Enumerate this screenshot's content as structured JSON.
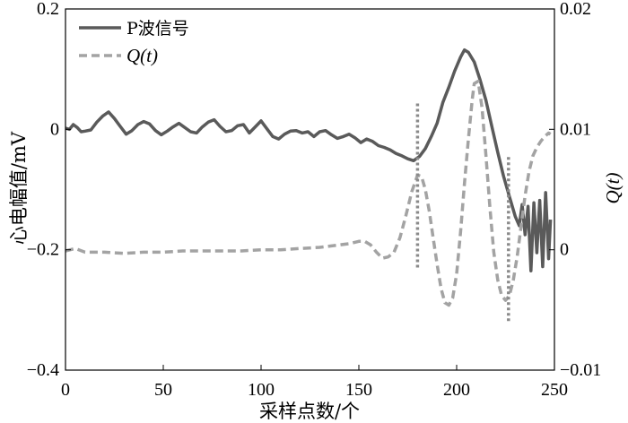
{
  "chart_data": {
    "type": "line",
    "grid": false,
    "legend_position": "top-left",
    "x_axis": {
      "label": "采样点数/个",
      "range": [
        0,
        250
      ],
      "ticks": [
        0,
        50,
        100,
        150,
        200,
        250
      ],
      "tick_labels": [
        "0",
        "50",
        "100",
        "150",
        "200",
        "250"
      ]
    },
    "y_axis_left": {
      "label": "心电幅值/mV",
      "range": [
        -0.4,
        0.2
      ],
      "ticks": [
        0.2,
        0,
        -0.2,
        -0.4
      ],
      "tick_labels": [
        "0.2",
        "0",
        "−0.2",
        "−0.4"
      ]
    },
    "y_axis_right": {
      "label": "Q(t)",
      "range": [
        -0.01,
        0.02
      ],
      "ticks": [
        0.02,
        0.01,
        0,
        -0.01
      ],
      "tick_labels": [
        "0.02",
        "0.01",
        "0",
        "−0.01"
      ]
    },
    "series": [
      {
        "name": "P波信号",
        "axis": "left",
        "color": "#5a5a5a",
        "x": [
          0,
          2,
          4,
          6,
          8,
          10,
          13,
          16,
          19,
          22,
          25,
          28,
          31,
          34,
          37,
          40,
          43,
          46,
          49,
          52,
          55,
          58,
          61,
          64,
          67,
          70,
          73,
          76,
          79,
          82,
          85,
          88,
          91,
          94,
          97,
          100,
          103,
          106,
          109,
          112,
          115,
          118,
          121,
          124,
          127,
          130,
          133,
          136,
          139,
          142,
          145,
          148,
          151,
          154,
          157,
          160,
          163,
          166,
          169,
          172,
          175,
          178,
          181,
          184,
          187,
          190,
          193,
          196,
          199,
          202,
          204,
          206,
          209,
          212,
          215,
          218,
          221,
          224,
          227,
          230,
          232,
          233.5,
          235,
          236.5,
          238,
          239.5,
          241,
          242.5,
          244,
          245.5,
          247,
          248
        ],
        "y": [
          0.002,
          0.0,
          0.008,
          0.003,
          -0.004,
          -0.003,
          -0.001,
          0.012,
          0.022,
          0.029,
          0.018,
          0.005,
          -0.008,
          -0.002,
          0.008,
          0.013,
          0.009,
          -0.002,
          -0.009,
          -0.003,
          0.004,
          0.01,
          0.003,
          -0.004,
          -0.006,
          0.004,
          0.012,
          0.016,
          0.005,
          -0.004,
          -0.002,
          0.006,
          0.008,
          -0.006,
          0.004,
          0.014,
          0.001,
          -0.012,
          -0.016,
          -0.008,
          -0.003,
          -0.002,
          -0.006,
          -0.004,
          -0.012,
          -0.004,
          -0.002,
          -0.009,
          -0.015,
          -0.012,
          -0.008,
          -0.014,
          -0.022,
          -0.016,
          -0.02,
          -0.027,
          -0.03,
          -0.034,
          -0.04,
          -0.044,
          -0.049,
          -0.052,
          -0.045,
          -0.032,
          -0.012,
          0.01,
          0.045,
          0.07,
          0.097,
          0.12,
          0.132,
          0.128,
          0.112,
          0.082,
          0.048,
          0.005,
          -0.038,
          -0.078,
          -0.112,
          -0.145,
          -0.16,
          -0.125,
          -0.175,
          -0.128,
          -0.235,
          -0.122,
          -0.205,
          -0.118,
          -0.228,
          -0.105,
          -0.215,
          -0.15
        ]
      },
      {
        "name": "Q(t)",
        "axis": "right",
        "color": "#a3a3a3",
        "x": [
          0,
          5,
          10,
          20,
          30,
          40,
          50,
          60,
          70,
          80,
          90,
          100,
          110,
          120,
          130,
          140,
          145,
          150,
          153,
          156,
          159,
          162,
          165,
          168,
          171,
          174,
          177,
          180,
          182,
          184,
          186,
          188,
          190,
          192,
          194,
          196,
          198,
          200,
          202,
          204,
          206,
          208,
          209,
          211,
          213,
          215,
          217,
          219,
          221,
          223,
          225,
          227,
          229,
          231,
          233,
          235,
          237,
          239,
          241,
          243,
          245,
          247,
          248
        ],
        "y": [
          -0.0001,
          0.0001,
          -0.0002,
          -0.0002,
          -0.0003,
          -0.0002,
          -0.0002,
          -0.0001,
          -0.0001,
          -0.0001,
          -0.0001,
          0.0,
          0.0,
          0.0001,
          0.0002,
          0.0004,
          0.0005,
          0.0007,
          0.0007,
          0.0004,
          -0.0002,
          -0.0007,
          -0.0006,
          -0.0002,
          0.001,
          0.0028,
          0.0048,
          0.0062,
          0.0061,
          0.005,
          0.0032,
          0.001,
          -0.0012,
          -0.0032,
          -0.0044,
          -0.0046,
          -0.004,
          -0.002,
          0.0015,
          0.0055,
          0.0092,
          0.0125,
          0.0138,
          0.014,
          0.0118,
          0.0078,
          0.0035,
          -0.0002,
          -0.0025,
          -0.0038,
          -0.0042,
          -0.0038,
          -0.0025,
          -0.0005,
          0.002,
          0.0045,
          0.0065,
          0.0078,
          0.0085,
          0.009,
          0.0094,
          0.0097,
          0.0096
        ]
      }
    ],
    "markers": [
      {
        "x": 180,
        "y": [
          -0.232,
          0.043
        ],
        "color": "#8a8a8a"
      },
      {
        "x": 226.5,
        "y": [
          -0.322,
          -0.046
        ],
        "color": "#8a8a8a"
      }
    ]
  }
}
